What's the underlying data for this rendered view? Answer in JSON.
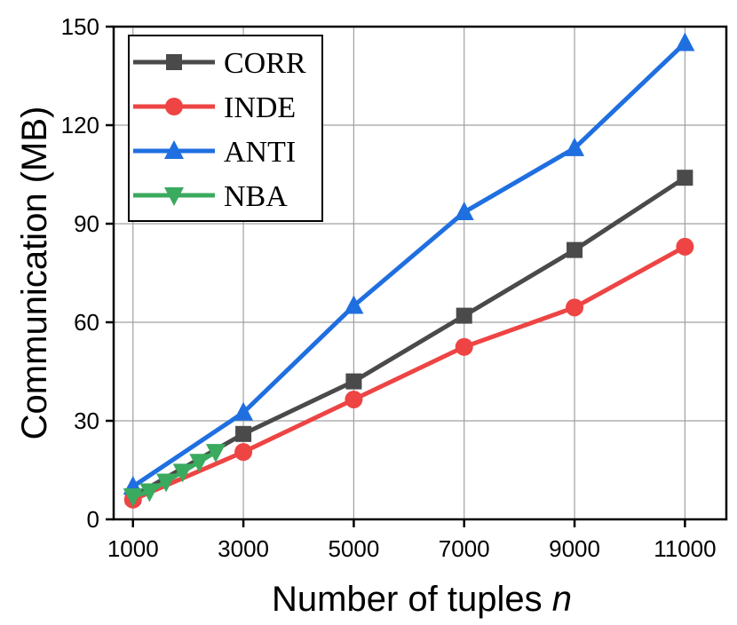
{
  "chart_data": {
    "type": "line",
    "xlabel": "Number of tuples",
    "xlabel_var": "n",
    "ylabel": "Communication (MB)",
    "xlim": [
      650,
      11750
    ],
    "ylim": [
      0,
      150
    ],
    "xticks": [
      1000,
      3000,
      5000,
      7000,
      9000,
      11000
    ],
    "xtick_labels": [
      "1000",
      "3000",
      "5000",
      "7000",
      "9000",
      "11000"
    ],
    "yticks": [
      0,
      30,
      60,
      90,
      120,
      150
    ],
    "ytick_labels": [
      "0",
      "30",
      "60",
      "90",
      "120",
      "150"
    ],
    "grid": true,
    "legend_position": "top-left",
    "series": [
      {
        "name": "CORR",
        "color": "#4a4a4a",
        "marker": "square",
        "x": [
          1000,
          3000,
          5000,
          7000,
          9000,
          11000
        ],
        "y": [
          7,
          26,
          42,
          62,
          82,
          104
        ]
      },
      {
        "name": "INDE",
        "color": "#ee4444",
        "marker": "circle",
        "x": [
          1000,
          3000,
          5000,
          7000,
          9000,
          11000
        ],
        "y": [
          6,
          20.5,
          36.5,
          52.5,
          64.5,
          83
        ]
      },
      {
        "name": "ANTI",
        "color": "#1f6fe0",
        "marker": "triangle-up",
        "x": [
          1000,
          3000,
          5000,
          7000,
          9000,
          11000
        ],
        "y": [
          10,
          32.5,
          65,
          93.5,
          113,
          145
        ]
      },
      {
        "name": "NBA",
        "color": "#3aaa5e",
        "marker": "triangle-down",
        "x": [
          1000,
          1300,
          1600,
          1900,
          2200,
          2500
        ],
        "y": [
          7,
          8.5,
          11.5,
          14.5,
          17.5,
          20.5
        ]
      }
    ]
  }
}
